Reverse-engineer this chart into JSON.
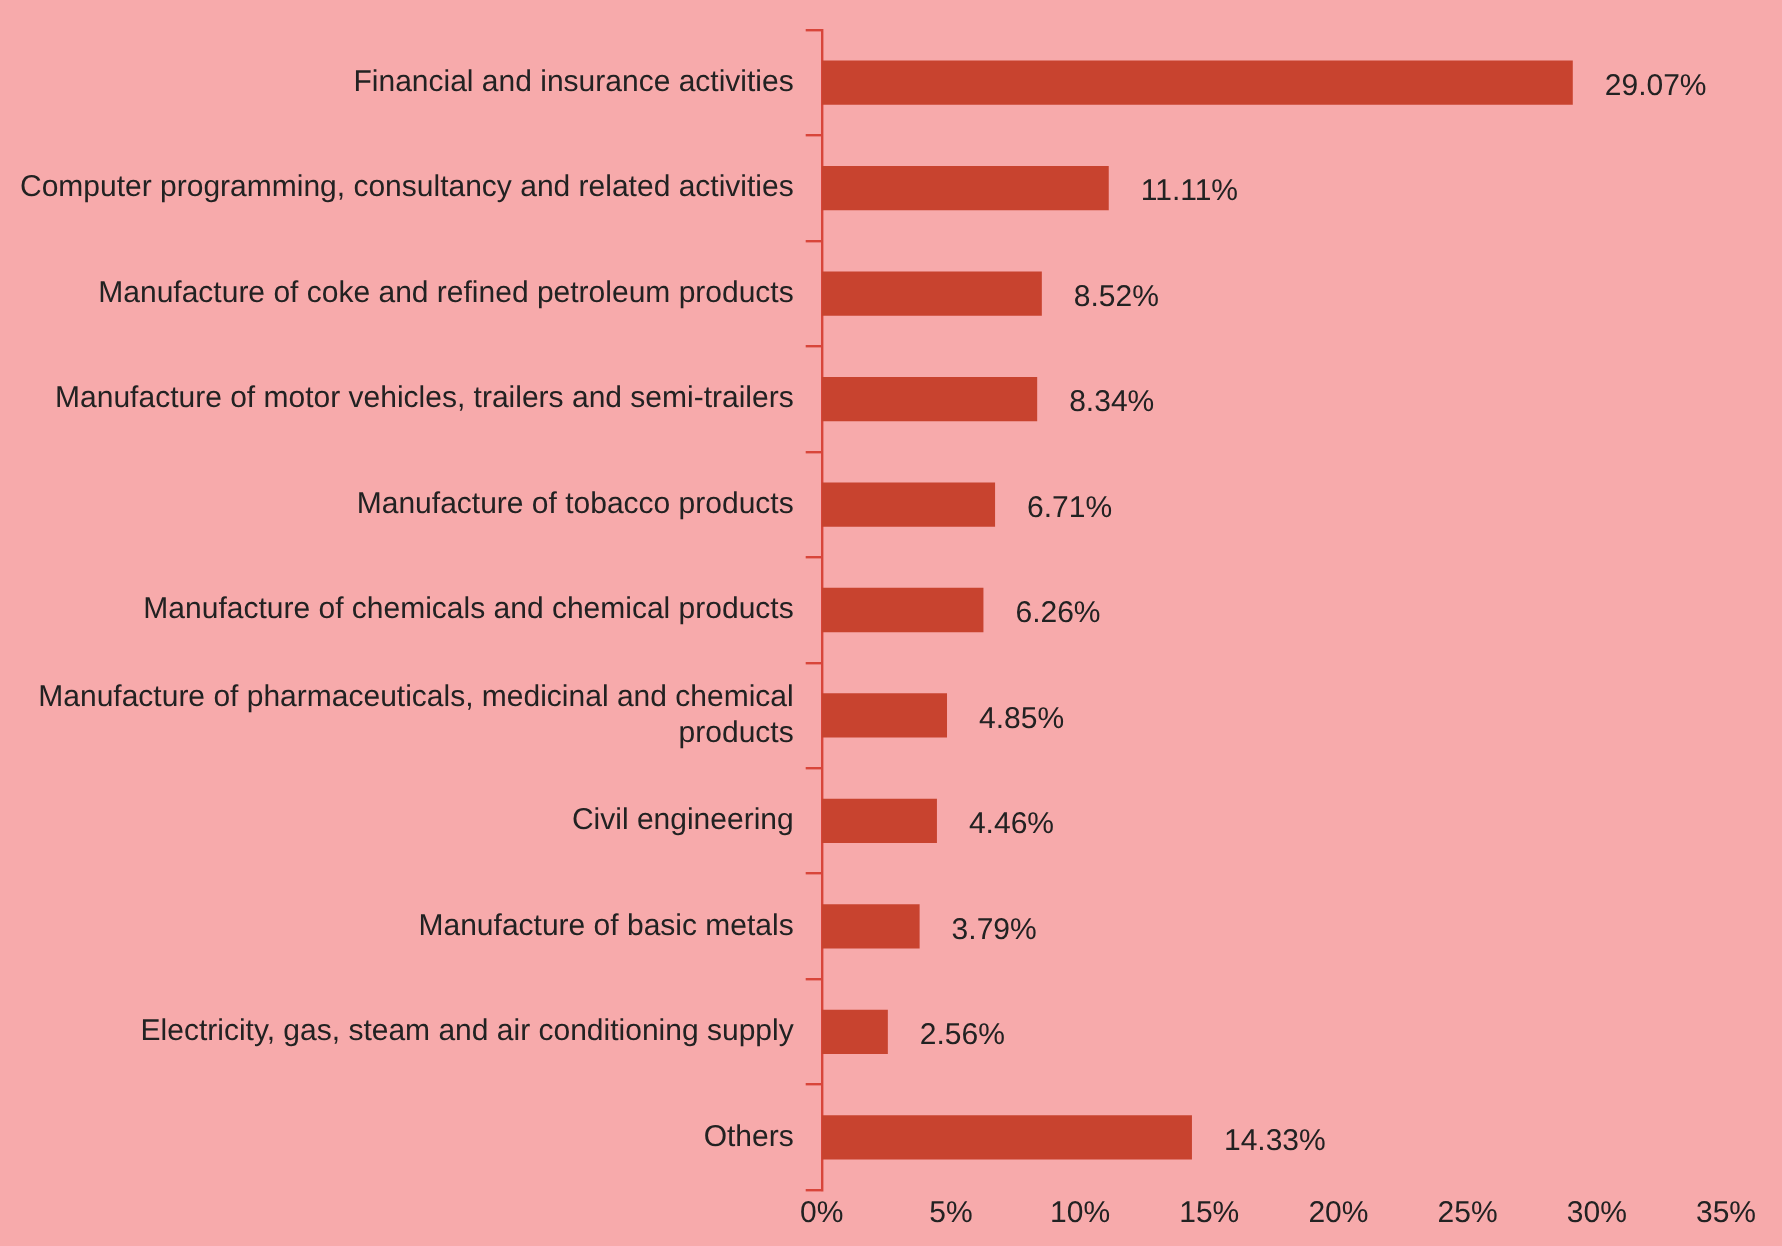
{
  "chart_data": {
    "type": "bar",
    "orientation": "horizontal",
    "categories": [
      "Financial and insurance activities",
      "Computer programming, consultancy and related activities",
      "Manufacture of coke and refined petroleum products",
      "Manufacture of motor vehicles, trailers and semi-trailers",
      "Manufacture of tobacco products",
      "Manufacture of chemicals and chemical products",
      "Manufacture of pharmaceuticals, medicinal and chemical products",
      "Civil engineering",
      "Manufacture of basic metals",
      "Electricity, gas, steam and air conditioning supply",
      "Others"
    ],
    "values": [
      29.07,
      11.11,
      8.52,
      8.34,
      6.71,
      6.26,
      4.85,
      4.46,
      3.79,
      2.56,
      14.33
    ],
    "value_labels": [
      "29.07%",
      "11.11%",
      "8.52%",
      "8.34%",
      "6.71%",
      "6.26%",
      "4.85%",
      "4.46%",
      "3.79%",
      "2.56%",
      "14.33%"
    ],
    "color": "#c8432f",
    "xlim": [
      0,
      35
    ],
    "xticks": [
      {
        "value": 0,
        "label": "0%"
      },
      {
        "value": 5,
        "label": "5%"
      },
      {
        "value": 10,
        "label": "10%"
      },
      {
        "value": 15,
        "label": "15%"
      },
      {
        "value": 20,
        "label": "20%"
      },
      {
        "value": 25,
        "label": "25%"
      },
      {
        "value": 30,
        "label": "30%"
      },
      {
        "value": 35,
        "label": "35%"
      }
    ],
    "grid": false,
    "legend": false
  }
}
